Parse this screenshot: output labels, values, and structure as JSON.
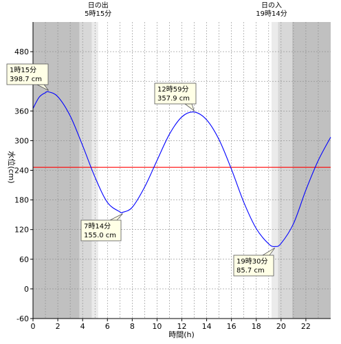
{
  "chart_data": {
    "type": "line",
    "xlabel": "時間(h)",
    "ylabel": "水位(cm)",
    "xlim": [
      0,
      24
    ],
    "ylim": [
      -60,
      540
    ],
    "xticks": [
      0,
      2,
      4,
      6,
      8,
      10,
      12,
      14,
      16,
      18,
      20,
      22
    ],
    "yticks": [
      -60,
      0,
      60,
      120,
      180,
      240,
      300,
      360,
      420,
      480
    ],
    "grid": true,
    "reference_line": {
      "y": 246,
      "color": "#ff0000"
    },
    "line_color": "#0000ff",
    "sun_events": [
      {
        "label": "日の出",
        "time": "5時15分",
        "x": 5.25
      },
      {
        "label": "日の入",
        "time": "19時14分",
        "x": 19.233
      }
    ],
    "shading": {
      "night_color": "#c0c0c0",
      "twilight_color": "#d8d8d8",
      "dawn_color": "#ebebeb",
      "night_end": 3.75,
      "twilight_end": 4.75,
      "dawn_end": 5.25,
      "dusk_start": 19.23,
      "dusk_twilight_start": 19.75,
      "night_start": 20.9
    },
    "series": [
      {
        "x": [
          0,
          0.5,
          1,
          1.25,
          2,
          3,
          4,
          5,
          6,
          7,
          7.23,
          8,
          9,
          10,
          11,
          12,
          12.98,
          14,
          15,
          16,
          17,
          18,
          19,
          19.5,
          20,
          21,
          22,
          23,
          24
        ],
        "y": [
          365,
          388,
          397,
          398.7,
          389,
          350,
          290,
          226,
          175,
          156,
          155,
          165,
          206,
          260,
          313,
          348,
          357.9,
          342,
          302,
          242,
          175,
          122,
          91,
          85.7,
          92,
          132,
          200,
          260,
          307
        ]
      }
    ],
    "annotations": [
      {
        "time": "1時15分",
        "value": "398.7 cm",
        "x": 1.25,
        "y": 398.7
      },
      {
        "time": "7時14分",
        "value": "155.0 cm",
        "x": 7.233,
        "y": 155.0
      },
      {
        "time": "12時59分",
        "value": "357.9 cm",
        "x": 12.983,
        "y": 357.9
      },
      {
        "time": "19時30分",
        "value": "85.7 cm",
        "x": 19.5,
        "y": 85.7
      }
    ]
  }
}
